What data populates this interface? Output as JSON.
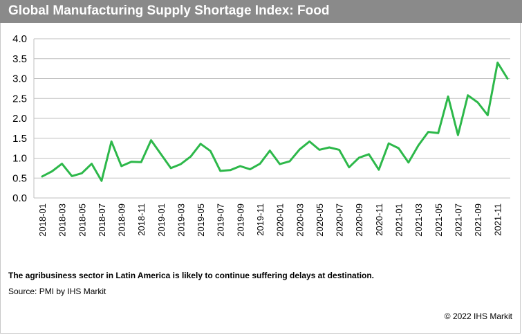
{
  "header": {
    "title": "Global Manufacturing Supply Shortage Index: Food"
  },
  "footer": {
    "note": "The agribusiness sector in Latin America is likely to continue suffering delays at destination.",
    "source": "Source: PMI by IHS Markit",
    "copyright": "© 2022 IHS Markit"
  },
  "colors": {
    "line": "#2db84a",
    "title_bar": "#8a8a8a",
    "grid": "#bfbfbf"
  },
  "chart_data": {
    "type": "line",
    "title": "Global Manufacturing Supply Shortage Index: Food",
    "xlabel": "",
    "ylabel": "",
    "ylim": [
      0,
      4
    ],
    "yticks": [
      "0.0",
      "0.5",
      "1.0",
      "1.5",
      "2.0",
      "2.5",
      "3.0",
      "3.5",
      "4.0"
    ],
    "grid": true,
    "legend": "none",
    "x": [
      "2018-01",
      "2018-02",
      "2018-03",
      "2018-04",
      "2018-05",
      "2018-06",
      "2018-07",
      "2018-08",
      "2018-09",
      "2018-10",
      "2018-11",
      "2018-12",
      "2019-01",
      "2019-02",
      "2019-03",
      "2019-04",
      "2019-05",
      "2019-06",
      "2019-07",
      "2019-08",
      "2019-09",
      "2019-10",
      "2019-11",
      "2019-12",
      "2020-01",
      "2020-02",
      "2020-03",
      "2020-04",
      "2020-05",
      "2020-06",
      "2020-07",
      "2020-08",
      "2020-09",
      "2020-10",
      "2020-11",
      "2020-12",
      "2021-01",
      "2021-02",
      "2021-03",
      "2021-04",
      "2021-05",
      "2021-06",
      "2021-07",
      "2021-08",
      "2021-09",
      "2021-10",
      "2021-11",
      "2021-12"
    ],
    "xtick_labels": [
      "2018-01",
      "2018-03",
      "2018-05",
      "2018-07",
      "2018-09",
      "2018-11",
      "2019-01",
      "2019-03",
      "2019-05",
      "2019-07",
      "2019-09",
      "2019-11",
      "2020-01",
      "2020-03",
      "2020-05",
      "2020-07",
      "2020-09",
      "2020-11",
      "2021-01",
      "2021-03",
      "2021-05",
      "2021-07",
      "2021-09",
      "2021-11"
    ],
    "series": [
      {
        "values": [
          0.54,
          0.67,
          0.86,
          0.55,
          0.62,
          0.86,
          0.43,
          1.42,
          0.8,
          0.91,
          0.9,
          1.45,
          1.1,
          0.75,
          0.85,
          1.04,
          1.36,
          1.18,
          0.68,
          0.7,
          0.8,
          0.72,
          0.86,
          1.19,
          0.85,
          0.92,
          1.22,
          1.42,
          1.21,
          1.27,
          1.21,
          0.77,
          1.01,
          1.1,
          0.71,
          1.37,
          1.25,
          0.89,
          1.32,
          1.66,
          1.63,
          2.55,
          1.58,
          2.58,
          2.4,
          2.08,
          3.4,
          3.0
        ]
      }
    ]
  }
}
